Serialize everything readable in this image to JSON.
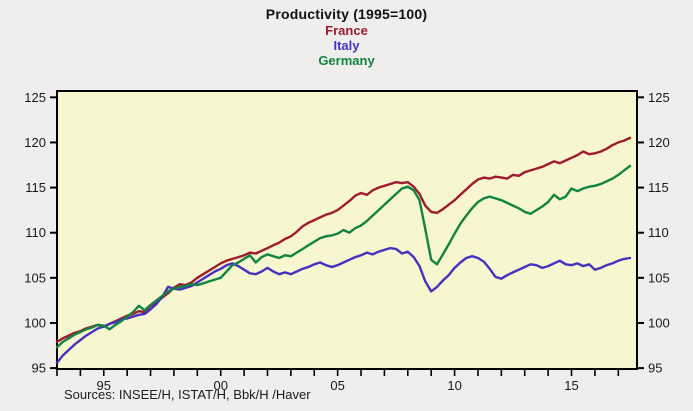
{
  "title": "Productivity (1995=100)",
  "source_note": "Sources:  INSEE/H, ISTAT/H, Bbk/H /Haver",
  "chart_data": {
    "type": "line",
    "title": "Productivity (1995=100)",
    "legend_position": "top-center",
    "grid": false,
    "plot_bg_color": "#f8f6ce",
    "frame_color": "#000000",
    "x_axis": {
      "start": 1993.0,
      "step": 0.25,
      "range": [
        1993.0,
        2017.8
      ],
      "minor_tick_years": [
        1993,
        1994,
        1995,
        1996,
        1997,
        1998,
        1999,
        2000,
        2001,
        2002,
        2003,
        2004,
        2005,
        2006,
        2007,
        2008,
        2009,
        2010,
        2011,
        2012,
        2013,
        2014,
        2015,
        2016,
        2017
      ],
      "labeled_ticks": [
        {
          "year": 1995,
          "label": "95"
        },
        {
          "year": 2000,
          "label": "00"
        },
        {
          "year": 2005,
          "label": "05"
        },
        {
          "year": 2010,
          "label": "10"
        },
        {
          "year": 2015,
          "label": "15"
        }
      ]
    },
    "y_axis": {
      "ticks": [
        95,
        100,
        105,
        110,
        115,
        120,
        125
      ],
      "range_drawn": [
        94.9,
        125.7
      ],
      "sides": "both"
    },
    "series": [
      {
        "name": "France",
        "color": "#9e1c2e",
        "values": [
          97.9,
          98.3,
          98.6,
          98.9,
          99.1,
          99.4,
          99.6,
          99.8,
          99.6,
          99.9,
          100.2,
          100.5,
          100.8,
          101.0,
          101.3,
          101.2,
          101.9,
          102.3,
          102.8,
          103.3,
          103.9,
          104.3,
          104.2,
          104.5,
          105.0,
          105.4,
          105.8,
          106.2,
          106.6,
          106.9,
          107.1,
          107.3,
          107.5,
          107.8,
          107.7,
          108.0,
          108.3,
          108.6,
          108.9,
          109.3,
          109.6,
          110.1,
          110.7,
          111.1,
          111.4,
          111.7,
          112.0,
          112.2,
          112.5,
          113.0,
          113.5,
          114.1,
          114.4,
          114.2,
          114.7,
          115.0,
          115.2,
          115.4,
          115.6,
          115.5,
          115.6,
          115.1,
          114.3,
          113.0,
          112.3,
          112.2,
          112.6,
          113.1,
          113.6,
          114.2,
          114.8,
          115.4,
          115.9,
          116.1,
          116.0,
          116.2,
          116.1,
          116.0,
          116.4,
          116.3,
          116.7,
          116.9,
          117.1,
          117.3,
          117.6,
          117.9,
          117.7,
          118.0,
          118.3,
          118.6,
          119.0,
          118.7,
          118.8,
          119.0,
          119.3,
          119.7,
          120.0,
          120.2,
          120.5
        ]
      },
      {
        "name": "Italy",
        "color": "#4632be",
        "values": [
          95.6,
          96.4,
          97.0,
          97.6,
          98.1,
          98.6,
          99.0,
          99.4,
          99.6,
          99.9,
          100.1,
          100.4,
          100.5,
          100.7,
          100.9,
          101.0,
          101.5,
          102.1,
          102.9,
          104.0,
          103.8,
          103.7,
          103.9,
          104.1,
          104.5,
          104.9,
          105.3,
          105.7,
          106.0,
          106.4,
          106.6,
          106.3,
          105.9,
          105.5,
          105.4,
          105.7,
          106.1,
          105.7,
          105.4,
          105.6,
          105.4,
          105.7,
          106.0,
          106.2,
          106.5,
          106.7,
          106.4,
          106.2,
          106.4,
          106.7,
          107.0,
          107.3,
          107.5,
          107.8,
          107.6,
          107.9,
          108.1,
          108.3,
          108.2,
          107.7,
          107.9,
          107.3,
          106.3,
          104.6,
          103.5,
          104.0,
          104.7,
          105.3,
          106.1,
          106.7,
          107.2,
          107.4,
          107.2,
          106.8,
          106.0,
          105.1,
          104.9,
          105.3,
          105.6,
          105.9,
          106.2,
          106.5,
          106.4,
          106.1,
          106.3,
          106.6,
          106.9,
          106.5,
          106.4,
          106.6,
          106.3,
          106.5,
          105.9,
          106.1,
          106.4,
          106.6,
          106.9,
          107.1,
          107.2
        ]
      },
      {
        "name": "Germany",
        "color": "#128442",
        "values": [
          97.3,
          97.9,
          98.3,
          98.7,
          99.0,
          99.3,
          99.5,
          99.8,
          99.7,
          99.3,
          99.8,
          100.2,
          100.7,
          101.2,
          101.9,
          101.4,
          102.0,
          102.5,
          103.0,
          103.5,
          103.8,
          104.0,
          104.1,
          104.3,
          104.2,
          104.4,
          104.6,
          104.8,
          105.0,
          105.7,
          106.4,
          106.7,
          107.1,
          107.5,
          106.7,
          107.3,
          107.6,
          107.4,
          107.2,
          107.5,
          107.4,
          107.8,
          108.2,
          108.6,
          109.0,
          109.4,
          109.6,
          109.7,
          109.9,
          110.3,
          110.0,
          110.5,
          110.8,
          111.3,
          111.9,
          112.5,
          113.1,
          113.7,
          114.3,
          114.9,
          115.1,
          114.7,
          113.6,
          110.4,
          107.0,
          106.5,
          107.6,
          108.7,
          109.9,
          111.0,
          111.9,
          112.7,
          113.4,
          113.8,
          114.0,
          113.8,
          113.6,
          113.3,
          113.0,
          112.7,
          112.3,
          112.1,
          112.5,
          112.9,
          113.4,
          114.2,
          113.7,
          114.0,
          114.9,
          114.6,
          114.9,
          115.1,
          115.2,
          115.4,
          115.7,
          116.0,
          116.4,
          116.9,
          117.4
        ]
      }
    ]
  }
}
